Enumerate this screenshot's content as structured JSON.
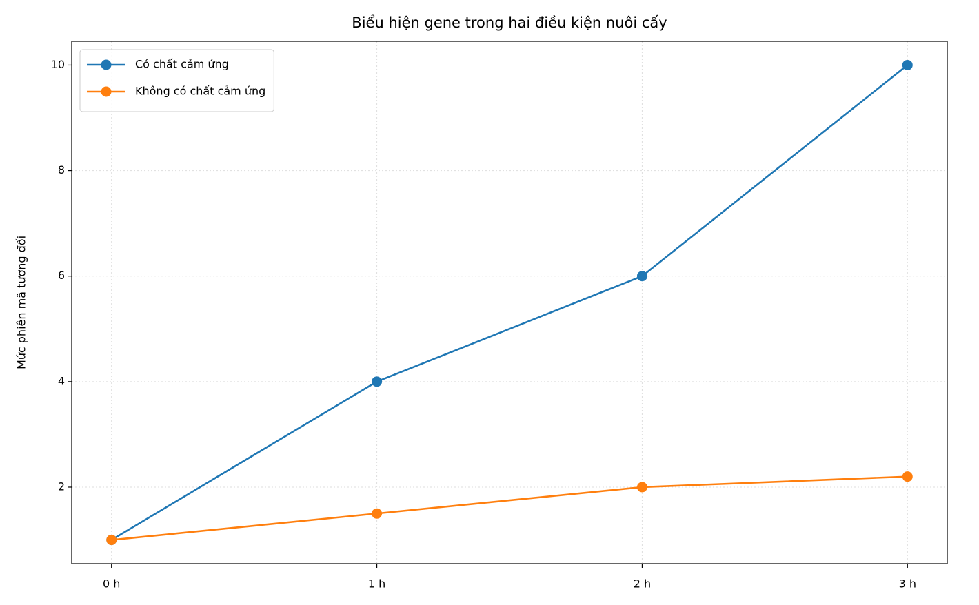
{
  "chart_data": {
    "type": "line",
    "title": "Biểu hiện gene trong hai điều kiện nuôi cấy",
    "y_label": "Mức phiên mã tương đối",
    "categories": [
      "0 h",
      "1 h",
      "2 h",
      "3 h"
    ],
    "series": [
      {
        "name": "Có chất cảm ứng",
        "color": "#1f77b4",
        "values": [
          1,
          4,
          6,
          10
        ]
      },
      {
        "name": "Không có chất cảm ứng",
        "color": "#ff7f0e",
        "values": [
          1,
          1.5,
          2,
          2.2
        ]
      }
    ],
    "ylim": [
      0.55,
      10.45
    ],
    "yticks": [
      2,
      4,
      6,
      8,
      10
    ],
    "grid": true,
    "legend": "upper-left"
  }
}
